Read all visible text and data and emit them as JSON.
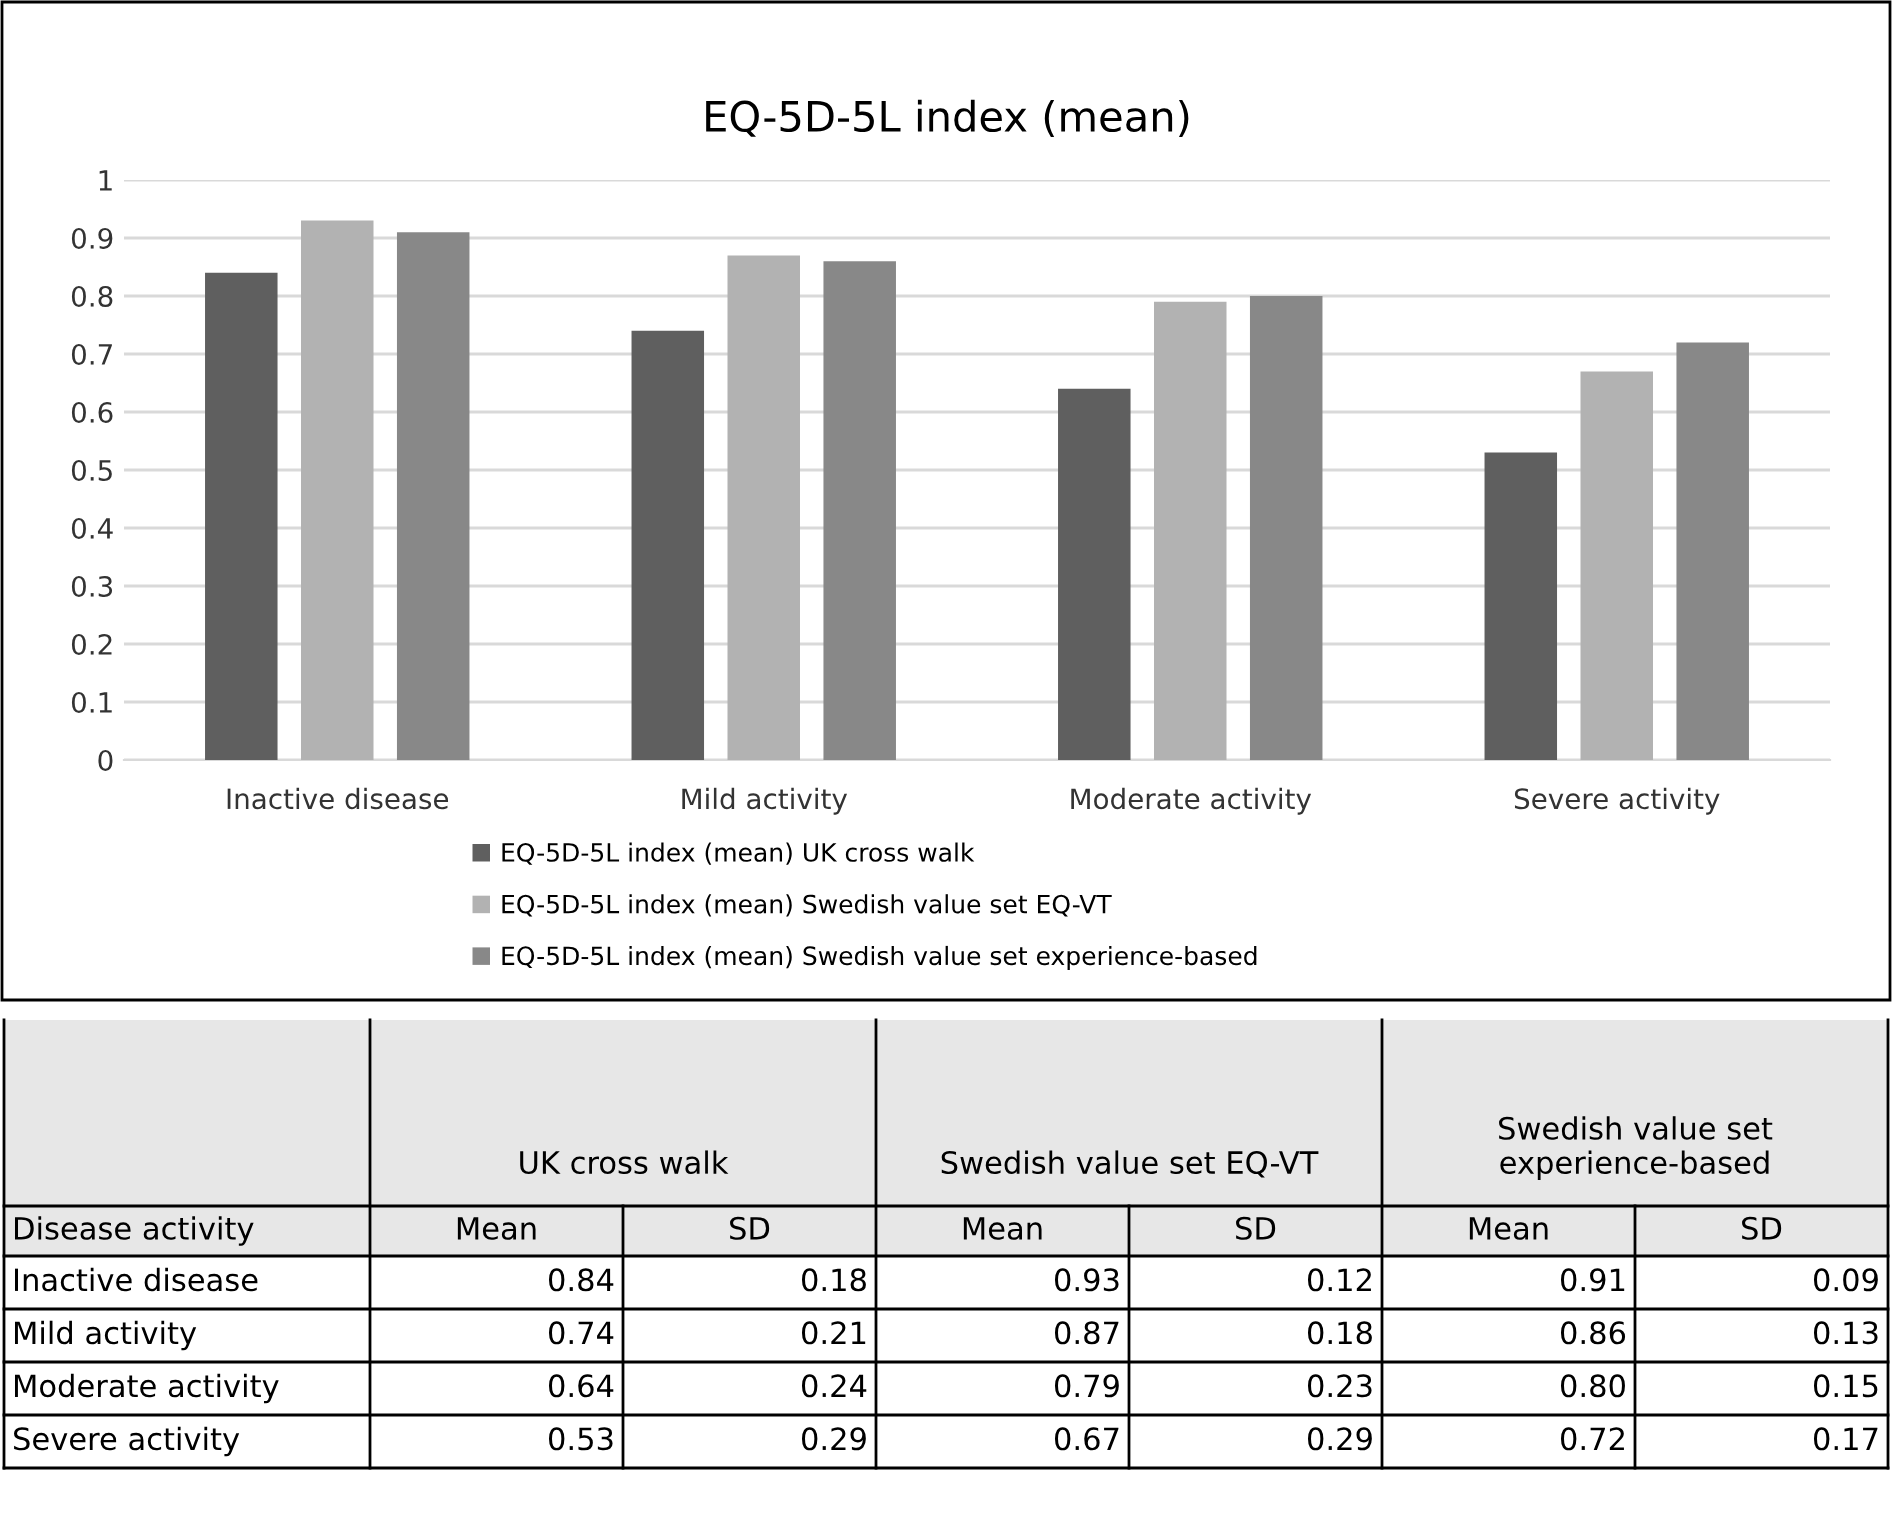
{
  "chart_data": {
    "type": "bar",
    "title": "EQ-5D-5L index (mean)",
    "categories": [
      "Inactive disease",
      "Mild activity",
      "Moderate activity",
      "Severe activity"
    ],
    "series": [
      {
        "name": "EQ-5D-5L index (mean) UK cross walk",
        "color": "#5f5f5f",
        "values": [
          0.84,
          0.74,
          0.64,
          0.53
        ]
      },
      {
        "name": "EQ-5D-5L index (mean) Swedish value set EQ-VT",
        "color": "#b2b2b2",
        "values": [
          0.93,
          0.87,
          0.79,
          0.67
        ]
      },
      {
        "name": "EQ-5D-5L index (mean) Swedish value set experience-based",
        "color": "#888888",
        "values": [
          0.91,
          0.86,
          0.8,
          0.72
        ]
      }
    ],
    "ylim": [
      0,
      1
    ],
    "yticks": [
      0,
      0.1,
      0.2,
      0.3,
      0.4,
      0.5,
      0.6,
      0.7,
      0.8,
      0.9,
      1
    ],
    "grid": "y",
    "legend": "bottom",
    "annotations": [
      "Disease activity",
      "UK cross walk",
      "Swedish value set EQ-VT",
      "Swedish value set experience-based",
      "Mean",
      "SD",
      "0.84",
      "0.74",
      "0.64",
      "0.53",
      "0.18",
      "0.21",
      "0.24",
      "0.29",
      "0.93",
      "0.87",
      "0.79",
      "0.67",
      "0.12",
      "0.18",
      "0.23",
      "0.29",
      "0.91",
      "0.86",
      "0.80",
      "0.72",
      "0.09",
      "0.13",
      "0.15",
      "0.17"
    ]
  }
}
